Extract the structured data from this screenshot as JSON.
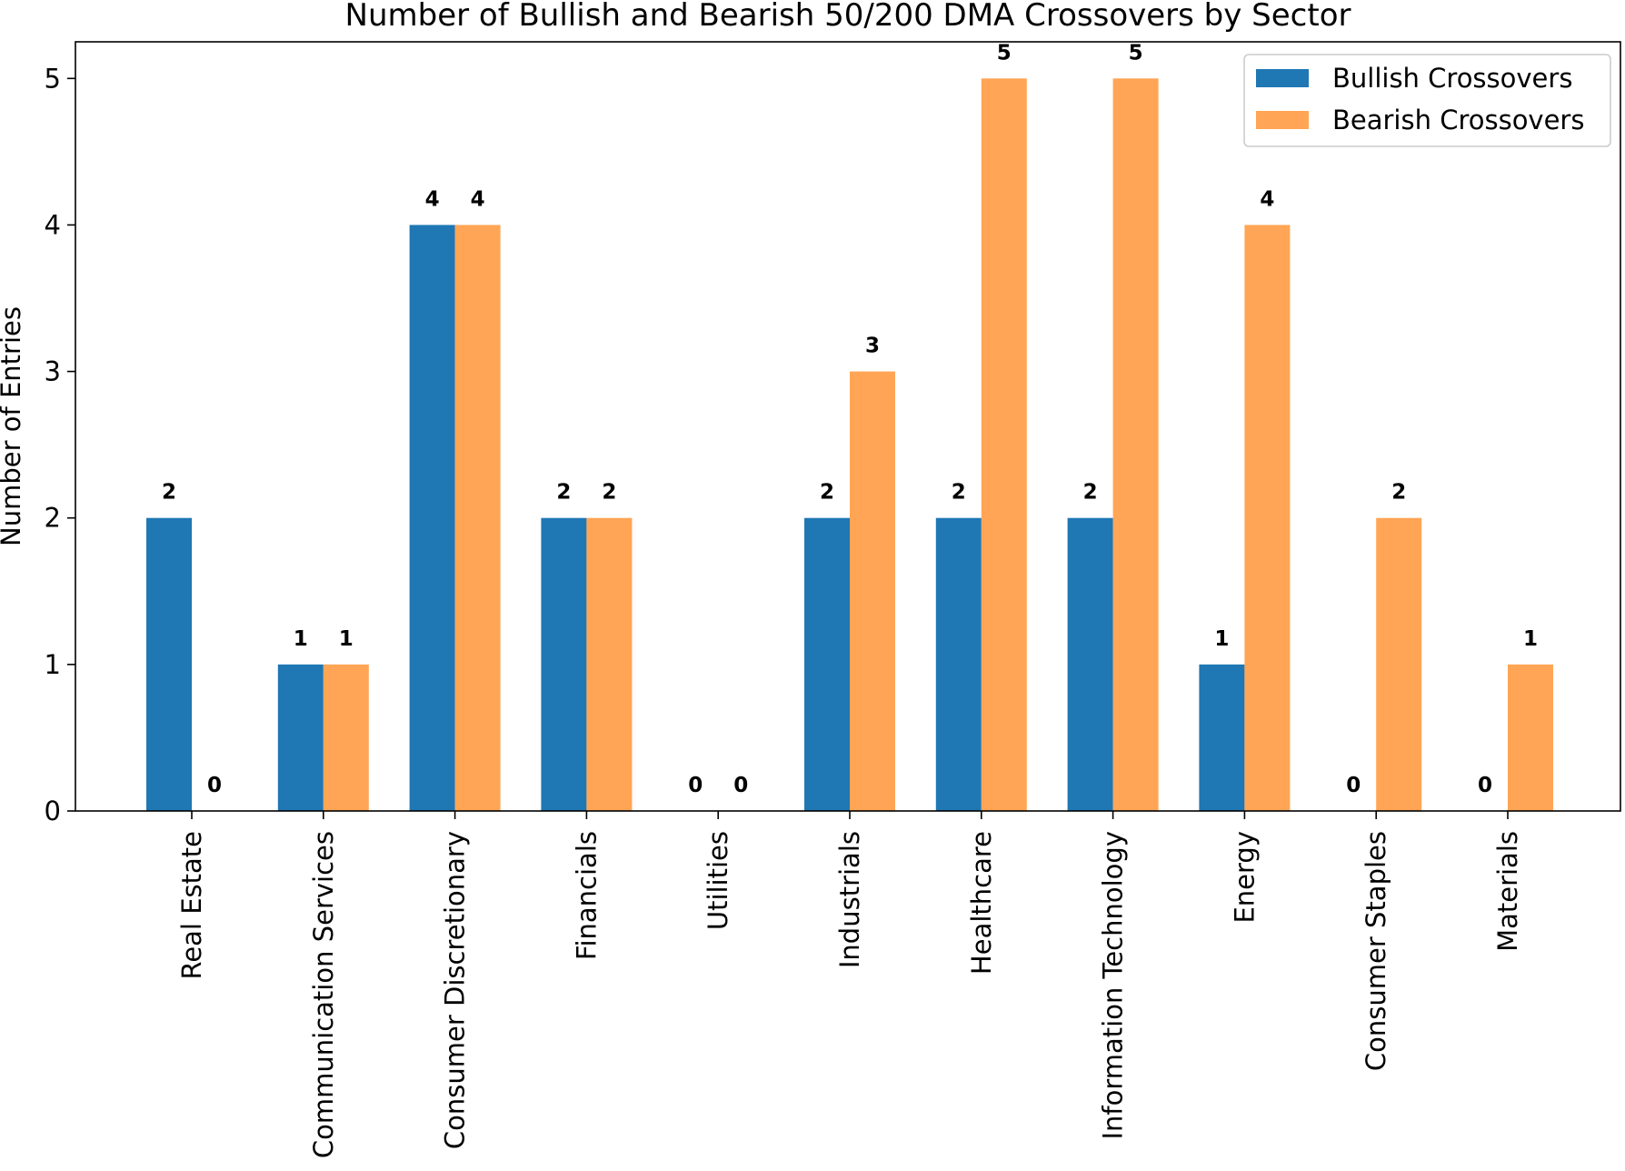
{
  "chart_data": {
    "type": "bar",
    "title": "Number of Bullish and Bearish 50/200 DMA Crossovers by Sector",
    "xlabel": "",
    "ylabel": "Number of Entries",
    "ylim": [
      0,
      5.25
    ],
    "yticks": [
      0,
      1,
      2,
      3,
      4,
      5
    ],
    "categories": [
      "Real Estate",
      "Communication Services",
      "Consumer Discretionary",
      "Financials",
      "Utilities",
      "Industrials",
      "Healthcare",
      "Information Technology",
      "Energy",
      "Consumer Staples",
      "Materials"
    ],
    "series": [
      {
        "name": "Bullish Crossovers",
        "color": "#1f77b4",
        "values": [
          2,
          1,
          4,
          2,
          0,
          2,
          2,
          2,
          1,
          0,
          0
        ]
      },
      {
        "name": "Bearish Crossovers",
        "color": "#ffa555",
        "values": [
          0,
          1,
          4,
          2,
          0,
          3,
          5,
          5,
          4,
          2,
          1
        ]
      }
    ],
    "legend_position": "top-right",
    "grid": false
  }
}
